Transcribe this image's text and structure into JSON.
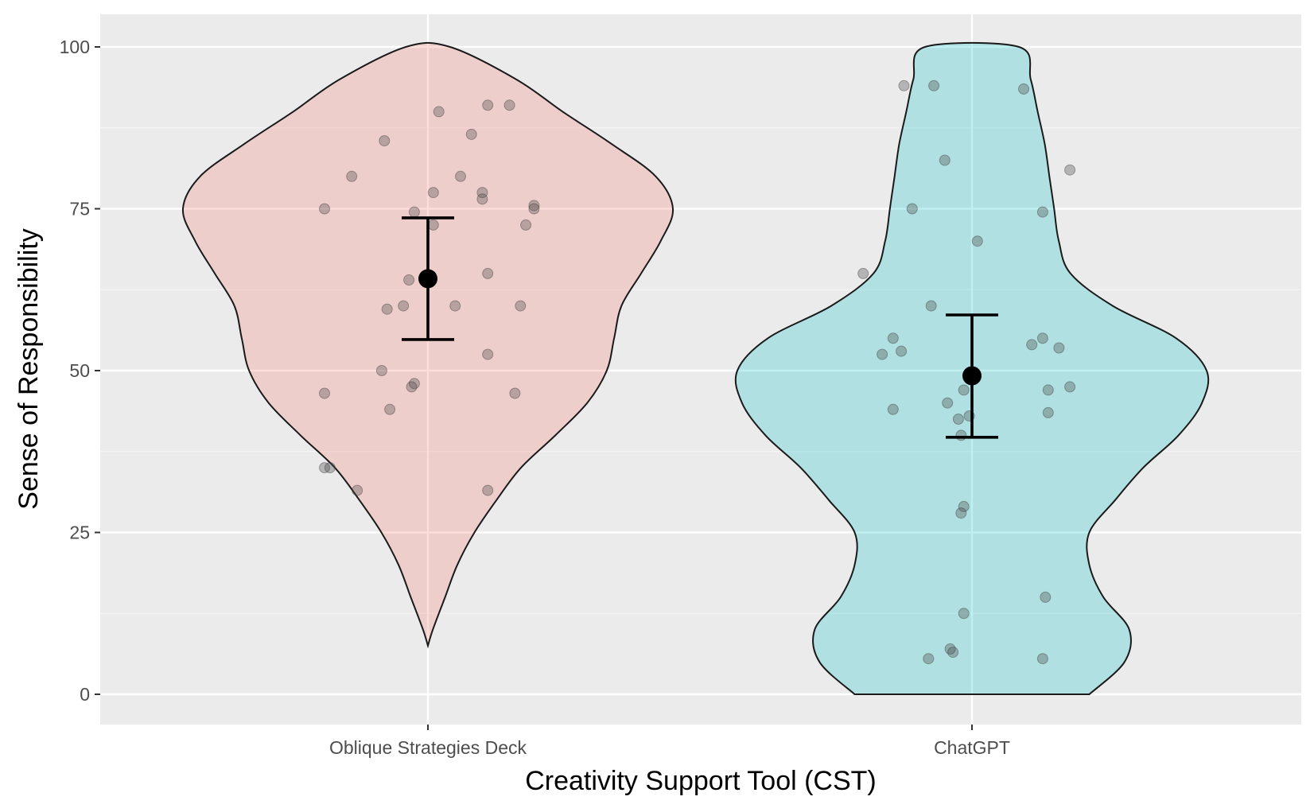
{
  "chart_data": {
    "type": "violin",
    "title": "",
    "xlabel": "Creativity Support Tool (CST)",
    "ylabel": "Sense of Responsibility",
    "ylim": [
      0,
      100
    ],
    "yticks": [
      0,
      25,
      50,
      75,
      100
    ],
    "grid": true,
    "legend": "none",
    "categories": [
      "Oblique Strategies Deck",
      "ChatGPT"
    ],
    "groups": [
      {
        "category": "Oblique Strategies Deck",
        "fill": "#f8766d",
        "mean": 64.2,
        "ci_low": 54.8,
        "ci_high": 73.6,
        "range": [
          7.5,
          100
        ],
        "density": [
          [
            7.5,
            0.0
          ],
          [
            10,
            0.02
          ],
          [
            15,
            0.07
          ],
          [
            20,
            0.12
          ],
          [
            25,
            0.19
          ],
          [
            30,
            0.28
          ],
          [
            35,
            0.38
          ],
          [
            40,
            0.52
          ],
          [
            45,
            0.65
          ],
          [
            50,
            0.73
          ],
          [
            55,
            0.76
          ],
          [
            60,
            0.79
          ],
          [
            65,
            0.87
          ],
          [
            70,
            0.95
          ],
          [
            75,
            1.0
          ],
          [
            80,
            0.93
          ],
          [
            85,
            0.75
          ],
          [
            90,
            0.55
          ],
          [
            95,
            0.36
          ],
          [
            100,
            0.09
          ]
        ],
        "points": [
          {
            "dx": -0.19,
            "y": 75.0
          },
          {
            "dx": -0.14,
            "y": 80.0
          },
          {
            "dx": -0.08,
            "y": 85.5
          },
          {
            "dx": 0.02,
            "y": 90.0
          },
          {
            "dx": 0.11,
            "y": 91.0
          },
          {
            "dx": 0.15,
            "y": 91.0
          },
          {
            "dx": 0.08,
            "y": 86.5
          },
          {
            "dx": 0.06,
            "y": 80.0
          },
          {
            "dx": 0.1,
            "y": 77.5
          },
          {
            "dx": 0.1,
            "y": 76.5
          },
          {
            "dx": 0.195,
            "y": 75.5
          },
          {
            "dx": 0.195,
            "y": 75.0
          },
          {
            "dx": 0.18,
            "y": 72.5
          },
          {
            "dx": 0.01,
            "y": 77.5
          },
          {
            "dx": -0.025,
            "y": 74.5
          },
          {
            "dx": 0.01,
            "y": 72.5
          },
          {
            "dx": -0.035,
            "y": 64.0
          },
          {
            "dx": 0.11,
            "y": 65.0
          },
          {
            "dx": -0.045,
            "y": 60.0
          },
          {
            "dx": -0.075,
            "y": 59.5
          },
          {
            "dx": 0.05,
            "y": 60.0
          },
          {
            "dx": 0.17,
            "y": 60.0
          },
          {
            "dx": 0.11,
            "y": 52.5
          },
          {
            "dx": -0.085,
            "y": 50.0
          },
          {
            "dx": -0.025,
            "y": 48.0
          },
          {
            "dx": -0.03,
            "y": 47.5
          },
          {
            "dx": -0.19,
            "y": 46.5
          },
          {
            "dx": 0.16,
            "y": 46.5
          },
          {
            "dx": -0.07,
            "y": 44.0
          },
          {
            "dx": -0.19,
            "y": 35.0
          },
          {
            "dx": -0.18,
            "y": 35.0
          },
          {
            "dx": -0.13,
            "y": 31.5
          },
          {
            "dx": 0.11,
            "y": 31.5
          }
        ]
      },
      {
        "category": "ChatGPT",
        "fill": "#00bfc4",
        "mean": 49.2,
        "ci_low": 39.7,
        "ci_high": 58.6,
        "range": [
          0,
          100
        ],
        "density": [
          [
            0,
            0.5
          ],
          [
            5,
            0.65
          ],
          [
            10,
            0.67
          ],
          [
            15,
            0.56
          ],
          [
            20,
            0.5
          ],
          [
            25,
            0.5
          ],
          [
            30,
            0.61
          ],
          [
            35,
            0.73
          ],
          [
            40,
            0.88
          ],
          [
            45,
            0.98
          ],
          [
            50,
            1.0
          ],
          [
            55,
            0.87
          ],
          [
            60,
            0.6
          ],
          [
            65,
            0.42
          ],
          [
            70,
            0.37
          ],
          [
            75,
            0.35
          ],
          [
            80,
            0.33
          ],
          [
            85,
            0.31
          ],
          [
            90,
            0.28
          ],
          [
            95,
            0.25
          ],
          [
            100,
            0.2
          ]
        ],
        "points": [
          {
            "dx": -0.125,
            "y": 94.0
          },
          {
            "dx": -0.07,
            "y": 94.0
          },
          {
            "dx": 0.095,
            "y": 93.5
          },
          {
            "dx": -0.05,
            "y": 82.5
          },
          {
            "dx": 0.18,
            "y": 81.0
          },
          {
            "dx": -0.11,
            "y": 75.0
          },
          {
            "dx": 0.13,
            "y": 74.5
          },
          {
            "dx": 0.01,
            "y": 70.0
          },
          {
            "dx": -0.2,
            "y": 65.0
          },
          {
            "dx": -0.075,
            "y": 60.0
          },
          {
            "dx": -0.145,
            "y": 55.0
          },
          {
            "dx": 0.13,
            "y": 55.0
          },
          {
            "dx": 0.11,
            "y": 54.0
          },
          {
            "dx": 0.16,
            "y": 53.5
          },
          {
            "dx": -0.165,
            "y": 52.5
          },
          {
            "dx": -0.13,
            "y": 53.0
          },
          {
            "dx": 0.14,
            "y": 47.0
          },
          {
            "dx": 0.18,
            "y": 47.5
          },
          {
            "dx": -0.015,
            "y": 47.0
          },
          {
            "dx": -0.045,
            "y": 45.0
          },
          {
            "dx": -0.145,
            "y": 44.0
          },
          {
            "dx": 0.14,
            "y": 43.5
          },
          {
            "dx": -0.005,
            "y": 43.0
          },
          {
            "dx": -0.025,
            "y": 42.5
          },
          {
            "dx": -0.02,
            "y": 40.0
          },
          {
            "dx": -0.015,
            "y": 29.0
          },
          {
            "dx": -0.02,
            "y": 28.0
          },
          {
            "dx": 0.135,
            "y": 15.0
          },
          {
            "dx": -0.015,
            "y": 12.5
          },
          {
            "dx": -0.04,
            "y": 7.0
          },
          {
            "dx": -0.035,
            "y": 6.5
          },
          {
            "dx": -0.08,
            "y": 5.5
          },
          {
            "dx": 0.13,
            "y": 5.5
          }
        ]
      }
    ]
  }
}
